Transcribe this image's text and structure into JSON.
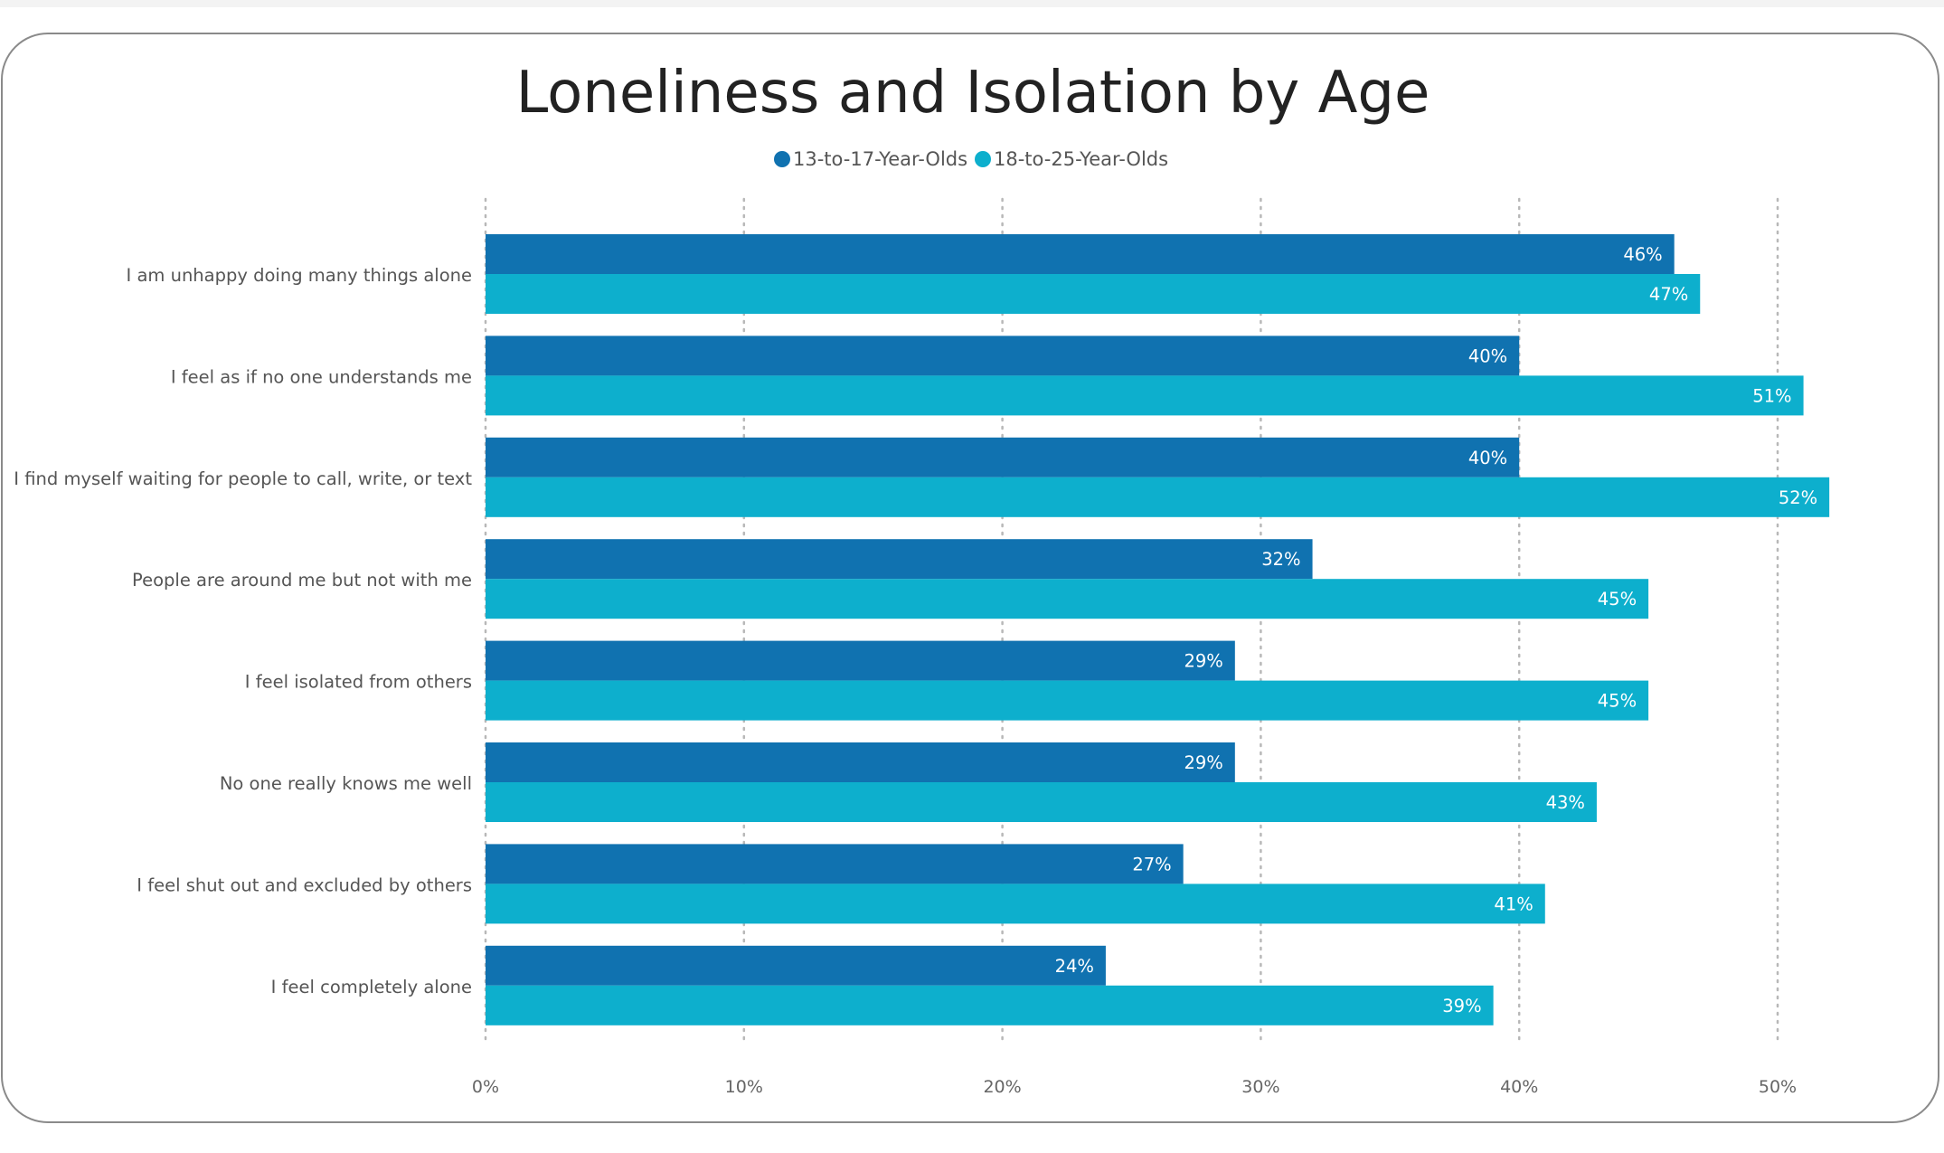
{
  "chart_data": {
    "type": "bar",
    "orientation": "horizontal",
    "title": "Loneliness and Isolation by Age",
    "categories": [
      "I am unhappy doing many things alone",
      "I feel as if no one understands me",
      "I find myself waiting for people to call, write, or text",
      "People are around me but not with me",
      "I feel isolated from others",
      "No one really knows me well",
      "I feel shut out and excluded by others",
      "I feel completely alone"
    ],
    "series": [
      {
        "name": "13-to-17-Year-Olds",
        "color": "#1072B0",
        "values": [
          46,
          40,
          40,
          32,
          29,
          29,
          27,
          24
        ],
        "labels": [
          "46%",
          "40%",
          "40%",
          "32%",
          "29%",
          "29%",
          "27%",
          "24%"
        ]
      },
      {
        "name": "18-to-25-Year-Olds",
        "color": "#0DAFCD",
        "values": [
          47,
          51,
          52,
          45,
          45,
          43,
          41,
          39
        ],
        "labels": [
          "47%",
          "51%",
          "52%",
          "45%",
          "45%",
          "43%",
          "41%",
          "39%"
        ]
      }
    ],
    "xlim": [
      0,
      52
    ],
    "xticks": [
      0,
      10,
      20,
      30,
      40,
      50
    ],
    "xtick_labels": [
      "0%",
      "10%",
      "20%",
      "30%",
      "40%",
      "50%"
    ],
    "grid": "vertical-dotted",
    "legend": "top-center"
  }
}
